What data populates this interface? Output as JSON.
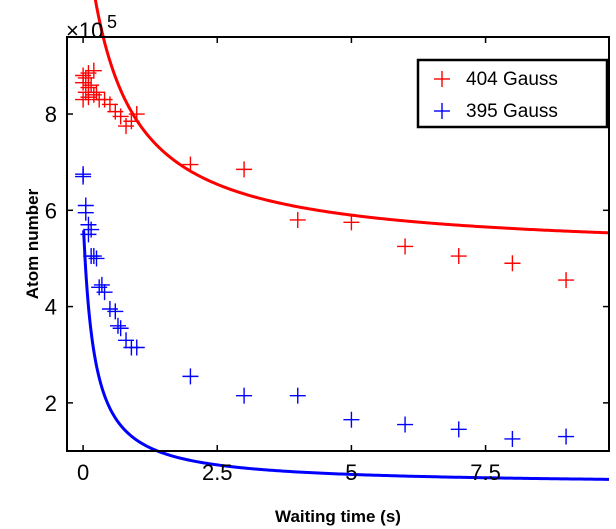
{
  "chart_data": {
    "type": "scatter",
    "title": "",
    "xlabel": "Waiting time (s)",
    "ylabel": "Atom number",
    "y_exponent_label": "×10",
    "y_exponent_power": "5",
    "xlim": [
      -0.3,
      9.8
    ],
    "ylim": [
      1.0,
      9.6
    ],
    "xticks": [
      0,
      2.5,
      5,
      7.5
    ],
    "xtick_labels": [
      "0",
      "2.5",
      "5",
      "7.5"
    ],
    "yticks": [
      2,
      4,
      6,
      8
    ],
    "ytick_labels": [
      "2",
      "4",
      "6",
      "8"
    ],
    "grid": false,
    "legend_position": "top-right",
    "series": [
      {
        "name": "404 Gauss",
        "color": "#ff0000",
        "points": [
          [
            0.0,
            8.3
          ],
          [
            0.0,
            8.65
          ],
          [
            0.0,
            8.8
          ],
          [
            0.05,
            8.45
          ],
          [
            0.05,
            8.75
          ],
          [
            0.1,
            8.35
          ],
          [
            0.1,
            8.55
          ],
          [
            0.1,
            8.85
          ],
          [
            0.15,
            8.6
          ],
          [
            0.2,
            8.4
          ],
          [
            0.2,
            8.9
          ],
          [
            0.25,
            8.45
          ],
          [
            0.3,
            8.3
          ],
          [
            0.4,
            8.3
          ],
          [
            0.5,
            8.2
          ],
          [
            0.6,
            8.05
          ],
          [
            0.7,
            7.95
          ],
          [
            0.8,
            7.75
          ],
          [
            0.9,
            7.85
          ],
          [
            1.0,
            8.0
          ],
          [
            2.0,
            6.95
          ],
          [
            3.0,
            6.85
          ],
          [
            4.0,
            5.8
          ],
          [
            5.0,
            5.75
          ],
          [
            6.0,
            5.25
          ],
          [
            7.0,
            5.05
          ],
          [
            8.0,
            4.9
          ],
          [
            9.0,
            4.55
          ]
        ],
        "fit": {
          "a": 7.2,
          "b": 1.6,
          "c": 5.1
        }
      },
      {
        "name": "395 Gauss",
        "color": "#0000ff",
        "points": [
          [
            0.0,
            6.7
          ],
          [
            0.0,
            6.75
          ],
          [
            0.05,
            6.1
          ],
          [
            0.05,
            5.95
          ],
          [
            0.1,
            5.7
          ],
          [
            0.1,
            5.5
          ],
          [
            0.15,
            5.6
          ],
          [
            0.15,
            5.05
          ],
          [
            0.2,
            5.05
          ],
          [
            0.25,
            5.0
          ],
          [
            0.3,
            4.4
          ],
          [
            0.35,
            4.45
          ],
          [
            0.4,
            4.3
          ],
          [
            0.5,
            3.95
          ],
          [
            0.6,
            3.9
          ],
          [
            0.65,
            3.6
          ],
          [
            0.7,
            3.55
          ],
          [
            0.8,
            3.3
          ],
          [
            0.9,
            3.15
          ],
          [
            1.0,
            3.15
          ],
          [
            2.0,
            2.55
          ],
          [
            3.0,
            2.15
          ],
          [
            4.0,
            2.15
          ],
          [
            5.0,
            1.65
          ],
          [
            6.0,
            1.55
          ],
          [
            7.0,
            1.45
          ],
          [
            8.0,
            1.25
          ],
          [
            9.0,
            1.3
          ]
        ],
        "fit": {
          "a": 5.55,
          "b": 5.0,
          "c": 0.3
        }
      }
    ]
  }
}
